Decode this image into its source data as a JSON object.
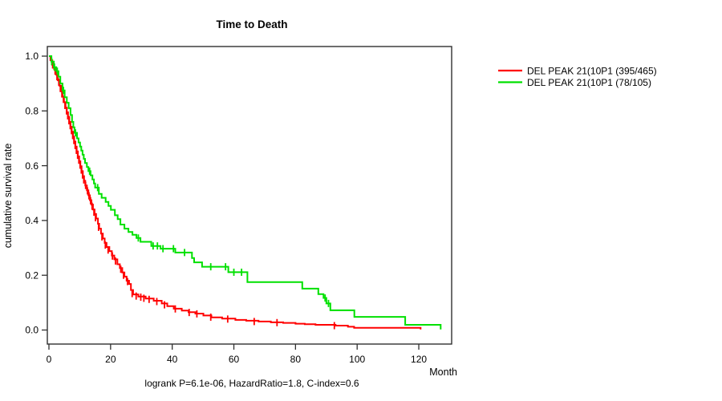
{
  "chart_data": {
    "type": "line",
    "subtype": "kaplan-meier-step",
    "title": "Time to Death",
    "xlabel": "Month",
    "ylabel": "cumulative survival rate",
    "footer": "logrank P=6.1e-06, HazardRatio=1.8, C-index=0.6",
    "axis_color": "#303030",
    "grid": false,
    "x_axis": {
      "range": [
        0,
        131
      ],
      "ticks": [
        {
          "value": 0,
          "label": "0"
        },
        {
          "value": 20,
          "label": "20"
        },
        {
          "value": 40,
          "label": "40"
        },
        {
          "value": 60,
          "label": "60"
        },
        {
          "value": 80,
          "label": "80"
        },
        {
          "value": 100,
          "label": "100"
        },
        {
          "value": 120,
          "label": "120"
        }
      ]
    },
    "y_axis": {
      "range": [
        0,
        1
      ],
      "ticks": [
        {
          "value": 0.0,
          "label": "0.0"
        },
        {
          "value": 0.2,
          "label": "0.2"
        },
        {
          "value": 0.4,
          "label": "0.4"
        },
        {
          "value": 0.6,
          "label": "0.6"
        },
        {
          "value": 0.8,
          "label": "0.8"
        },
        {
          "value": 1.0,
          "label": "1.0"
        }
      ]
    },
    "legend": {
      "position": "right-outside",
      "entries": [
        {
          "label": "DEL PEAK 21(10P1 (395/465)",
          "color": "#ff0000"
        },
        {
          "label": "DEL PEAK 21(10P1 (78/105)",
          "color": "#00e000"
        }
      ]
    },
    "series": [
      {
        "name": "DEL PEAK 21(10P1 (395/465)",
        "color": "#ff0000",
        "points": [
          [
            0,
            1.0
          ],
          [
            0.5,
            0.985
          ],
          [
            1.1,
            0.968
          ],
          [
            1.7,
            0.952
          ],
          [
            2.4,
            0.932
          ],
          [
            2.9,
            0.912
          ],
          [
            3.4,
            0.892
          ],
          [
            3.9,
            0.872
          ],
          [
            4.4,
            0.852
          ],
          [
            4.9,
            0.832
          ],
          [
            5.4,
            0.812
          ],
          [
            5.8,
            0.795
          ],
          [
            6.2,
            0.778
          ],
          [
            6.6,
            0.76
          ],
          [
            7,
            0.742
          ],
          [
            7.4,
            0.724
          ],
          [
            7.8,
            0.706
          ],
          [
            8.2,
            0.688
          ],
          [
            8.6,
            0.67
          ],
          [
            9,
            0.652
          ],
          [
            9.4,
            0.634
          ],
          [
            9.8,
            0.616
          ],
          [
            10.2,
            0.598
          ],
          [
            10.6,
            0.58
          ],
          [
            11,
            0.562
          ],
          [
            11.4,
            0.545
          ],
          [
            11.8,
            0.528
          ],
          [
            12.3,
            0.51
          ],
          [
            12.8,
            0.492
          ],
          [
            13.3,
            0.474
          ],
          [
            13.8,
            0.458
          ],
          [
            14.3,
            0.44
          ],
          [
            14.8,
            0.424
          ],
          [
            15.3,
            0.407
          ],
          [
            15.9,
            0.388
          ],
          [
            16.3,
            0.37
          ],
          [
            16.9,
            0.352
          ],
          [
            17.5,
            0.334
          ],
          [
            18.1,
            0.318
          ],
          [
            18.7,
            0.303
          ],
          [
            19.6,
            0.288
          ],
          [
            20.4,
            0.272
          ],
          [
            21.2,
            0.258
          ],
          [
            22.2,
            0.24
          ],
          [
            23,
            0.226
          ],
          [
            23.8,
            0.21
          ],
          [
            24.5,
            0.195
          ],
          [
            25.2,
            0.18
          ],
          [
            26,
            0.168
          ],
          [
            26.6,
            0.146
          ],
          [
            27.3,
            0.13
          ],
          [
            29,
            0.122
          ],
          [
            31.4,
            0.115
          ],
          [
            34,
            0.107
          ],
          [
            36.6,
            0.097
          ],
          [
            38.4,
            0.087
          ],
          [
            40.5,
            0.078
          ],
          [
            43.1,
            0.071
          ],
          [
            45.3,
            0.065
          ],
          [
            47.5,
            0.06
          ],
          [
            50.1,
            0.053
          ],
          [
            52.7,
            0.046
          ],
          [
            56.2,
            0.042
          ],
          [
            60.5,
            0.037
          ],
          [
            64,
            0.034
          ],
          [
            68,
            0.031
          ],
          [
            72,
            0.028
          ],
          [
            76,
            0.026
          ],
          [
            80,
            0.023
          ],
          [
            83,
            0.021
          ],
          [
            86.5,
            0.019
          ],
          [
            93,
            0.016
          ],
          [
            97,
            0.012
          ],
          [
            99,
            0.008
          ],
          [
            120.3,
            0.008
          ],
          [
            120.6,
            0.002
          ]
        ],
        "censor_marks": [
          [
            1.2,
            0.968
          ],
          [
            2,
            0.945
          ],
          [
            2.6,
            0.925
          ],
          [
            3.2,
            0.905
          ],
          [
            3.7,
            0.882
          ],
          [
            4.2,
            0.862
          ],
          [
            4.7,
            0.842
          ],
          [
            5.2,
            0.82
          ],
          [
            5.7,
            0.8
          ],
          [
            6.1,
            0.782
          ],
          [
            6.5,
            0.764
          ],
          [
            6.9,
            0.746
          ],
          [
            7.3,
            0.728
          ],
          [
            7.7,
            0.71
          ],
          [
            8.1,
            0.692
          ],
          [
            8.5,
            0.674
          ],
          [
            8.9,
            0.656
          ],
          [
            9.3,
            0.638
          ],
          [
            9.7,
            0.62
          ],
          [
            10.1,
            0.602
          ],
          [
            10.5,
            0.584
          ],
          [
            10.9,
            0.566
          ],
          [
            11.3,
            0.548
          ],
          [
            11.9,
            0.528
          ],
          [
            12.5,
            0.508
          ],
          [
            13,
            0.49
          ],
          [
            13.5,
            0.472
          ],
          [
            14,
            0.452
          ],
          [
            14.6,
            0.43
          ],
          [
            15.1,
            0.41
          ],
          [
            16.1,
            0.375
          ],
          [
            17.2,
            0.34
          ],
          [
            18.3,
            0.31
          ],
          [
            19.2,
            0.292
          ],
          [
            20.6,
            0.27
          ],
          [
            21.6,
            0.252
          ],
          [
            23.3,
            0.222
          ],
          [
            24.2,
            0.2
          ],
          [
            25.5,
            0.177
          ],
          [
            27,
            0.133
          ],
          [
            28.3,
            0.124
          ],
          [
            29.8,
            0.12
          ],
          [
            30.8,
            0.116
          ],
          [
            32.5,
            0.112
          ],
          [
            35,
            0.104
          ],
          [
            37.5,
            0.092
          ],
          [
            41,
            0.077
          ],
          [
            45.5,
            0.064
          ],
          [
            48,
            0.059
          ],
          [
            52.5,
            0.047
          ],
          [
            58,
            0.04
          ],
          [
            66.6,
            0.031
          ],
          [
            74,
            0.027
          ],
          [
            92.6,
            0.016
          ]
        ]
      },
      {
        "name": "DEL PEAK 21(10P1 (78/105)",
        "color": "#00e000",
        "points": [
          [
            0,
            1.0
          ],
          [
            0.8,
            0.98
          ],
          [
            1.6,
            0.96
          ],
          [
            2.4,
            0.945
          ],
          [
            3.1,
            0.925
          ],
          [
            3.7,
            0.9
          ],
          [
            4.4,
            0.875
          ],
          [
            5.1,
            0.85
          ],
          [
            5.8,
            0.83
          ],
          [
            6.4,
            0.81
          ],
          [
            7,
            0.785
          ],
          [
            7.5,
            0.76
          ],
          [
            7.9,
            0.74
          ],
          [
            8.3,
            0.72
          ],
          [
            9.1,
            0.7
          ],
          [
            9.6,
            0.685
          ],
          [
            10.1,
            0.67
          ],
          [
            10.5,
            0.655
          ],
          [
            10.9,
            0.64
          ],
          [
            11.3,
            0.625
          ],
          [
            11.7,
            0.61
          ],
          [
            12.3,
            0.595
          ],
          [
            12.8,
            0.58
          ],
          [
            13.5,
            0.565
          ],
          [
            14.1,
            0.55
          ],
          [
            14.6,
            0.535
          ],
          [
            15,
            0.52
          ],
          [
            16.2,
            0.497
          ],
          [
            17.1,
            0.483
          ],
          [
            18.4,
            0.468
          ],
          [
            19.3,
            0.453
          ],
          [
            20.1,
            0.439
          ],
          [
            21.4,
            0.419
          ],
          [
            22.3,
            0.405
          ],
          [
            23.2,
            0.385
          ],
          [
            24.5,
            0.37
          ],
          [
            25.8,
            0.358
          ],
          [
            27.1,
            0.348
          ],
          [
            28.4,
            0.336
          ],
          [
            29.7,
            0.322
          ],
          [
            33.2,
            0.307
          ],
          [
            36.2,
            0.297
          ],
          [
            41,
            0.283
          ],
          [
            46.4,
            0.263
          ],
          [
            47.1,
            0.247
          ],
          [
            49.7,
            0.231
          ],
          [
            58.2,
            0.211
          ],
          [
            64.4,
            0.175
          ],
          [
            82.2,
            0.151
          ],
          [
            87.4,
            0.131
          ],
          [
            89.1,
            0.117
          ],
          [
            90,
            0.097
          ],
          [
            91.3,
            0.072
          ],
          [
            99.1,
            0.048
          ],
          [
            115.6,
            0.019
          ],
          [
            126.9,
            0.019
          ],
          [
            127.1,
            0.002
          ]
        ],
        "censor_marks": [
          [
            0.9,
            0.98
          ],
          [
            1.8,
            0.96
          ],
          [
            2.7,
            0.945
          ],
          [
            4.7,
            0.875
          ],
          [
            8.6,
            0.72
          ],
          [
            13.2,
            0.58
          ],
          [
            15.8,
            0.52
          ],
          [
            29,
            0.336
          ],
          [
            33.8,
            0.307
          ],
          [
            35.2,
            0.307
          ],
          [
            37,
            0.297
          ],
          [
            40.4,
            0.297
          ],
          [
            44,
            0.283
          ],
          [
            52.5,
            0.231
          ],
          [
            57.3,
            0.231
          ],
          [
            60,
            0.211
          ],
          [
            62.5,
            0.211
          ],
          [
            89.6,
            0.117
          ],
          [
            90.7,
            0.097
          ]
        ]
      }
    ]
  }
}
